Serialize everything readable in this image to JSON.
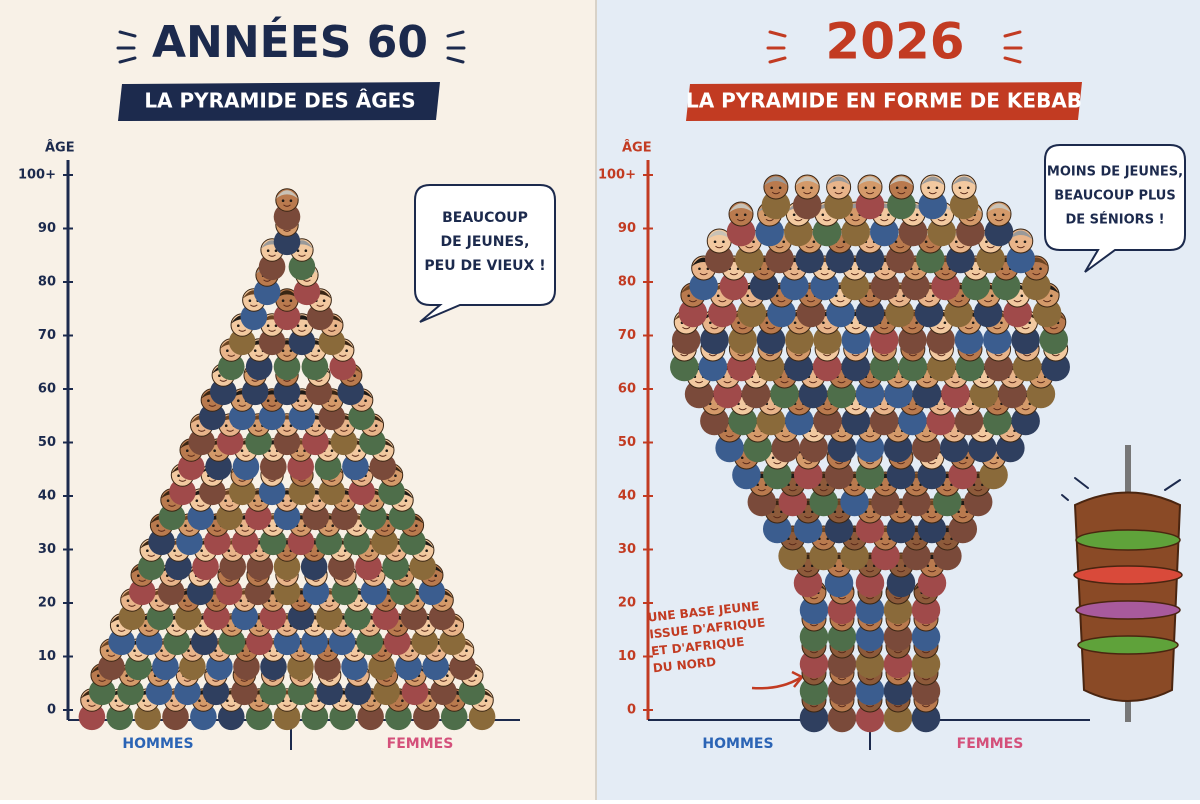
{
  "left": {
    "title": "ANNÉES 60",
    "subtitle": "LA PYRAMIDE DES ÂGES",
    "axis_label": "ÂGE",
    "ticks": [
      "100+",
      "90",
      "80",
      "70",
      "60",
      "50",
      "40",
      "30",
      "20",
      "10",
      "0"
    ],
    "bubble": [
      "BEAUCOUP",
      "DE JEUNES,",
      "PEU DE VIEUX !"
    ],
    "sides": [
      "HOMMES",
      "FEMMES"
    ]
  },
  "right": {
    "title": "2026",
    "subtitle": "LA PYRAMIDE EN FORME DE KEBAB",
    "axis_label": "ÂGE",
    "ticks": [
      "100+",
      "90",
      "80",
      "70",
      "60",
      "50",
      "40",
      "30",
      "20",
      "10",
      "0"
    ],
    "bubble": [
      "MOINS DE JEUNES,",
      "BEAUCOUP PLUS",
      "DE SÉNIORS !"
    ],
    "annotation": [
      "UNE BASE JEUNE",
      "ISSUE D'AFRIQUE",
      "ET D'AFRIQUE",
      "DU NORD"
    ],
    "sides": [
      "HOMMES",
      "FEMMES"
    ]
  }
}
